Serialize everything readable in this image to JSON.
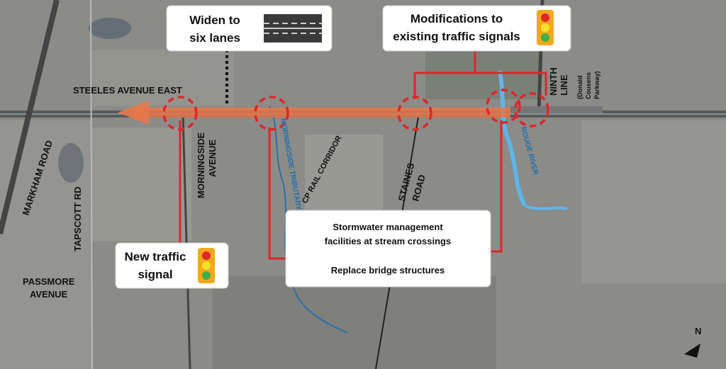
{
  "callouts": {
    "widen": [
      "Widen to",
      "six lanes"
    ],
    "signals": [
      "Modifications to",
      "existing traffic signals"
    ],
    "new_signal": [
      "New traffic",
      "signal"
    ],
    "stormwater": [
      "Stormwater management",
      "facilities at stream crossings",
      "Replace bridge structures"
    ]
  },
  "labels": {
    "steeles": "STEELES AVENUE EAST",
    "markham": "MARKHAM ROAD",
    "tapscott": "TAPSCOTT RD",
    "passmore": [
      "PASSMORE",
      "AVENUE"
    ],
    "morningside": [
      "MORNINGSIDE",
      "AVENUE"
    ],
    "tributary": "MORNINGSIDE TRIBUTARY",
    "cp_rail": "CP RAIL CORRIDOR",
    "staines": [
      "STAINES",
      "ROAD"
    ],
    "rouge": "ROUGE RIVER",
    "ninth": [
      "NINTH",
      "LINE"
    ],
    "donald": [
      "(Donald",
      "Cousens",
      "Parkway)"
    ],
    "north": "N"
  }
}
